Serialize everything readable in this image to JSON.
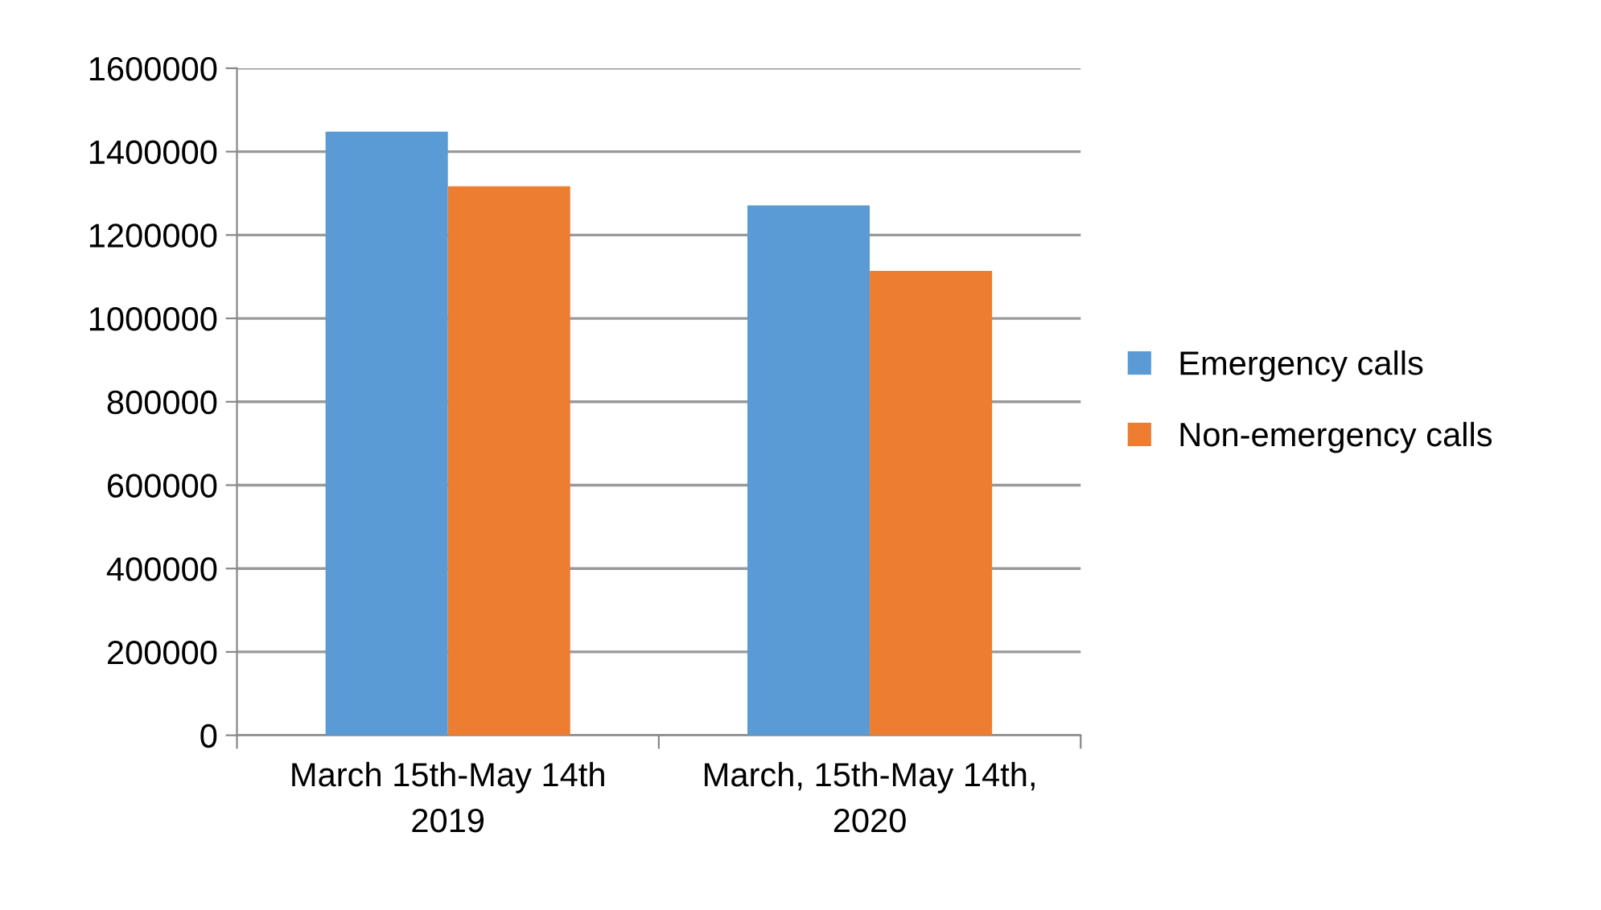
{
  "chart_data": {
    "type": "bar",
    "categories": [
      "March 15th-May 14th\n2019",
      "March, 15th-May 14th,\n2020"
    ],
    "series": [
      {
        "name": "Emergency calls",
        "color": "#5b9bd5",
        "values": [
          1448000,
          1271000
        ]
      },
      {
        "name": "Non-emergency calls",
        "color": "#ed7d31",
        "values": [
          1317000,
          1114000
        ]
      }
    ],
    "ylim": [
      0,
      1600000
    ],
    "yticks": [
      0,
      200000,
      400000,
      600000,
      800000,
      1000000,
      1200000,
      1400000,
      1600000
    ],
    "grid": "y",
    "legend": "right"
  }
}
